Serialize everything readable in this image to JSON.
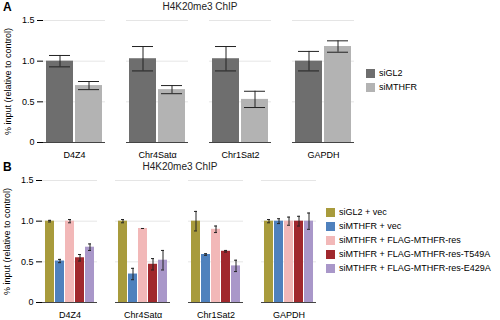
{
  "chart_data": [
    {
      "type": "bar",
      "title": "H4K20me3 ChIP",
      "annotations": [
        "A"
      ],
      "ylabel": "% input (relative to control)",
      "categories": [
        "D4Z4",
        "Chr4Satα",
        "Chr1Sat2",
        "GAPDH"
      ],
      "series": [
        {
          "name": "siGL2",
          "color": "#6e6e6e",
          "values": [
            1.0,
            1.03,
            1.03,
            1.0
          ],
          "errors": [
            0.07,
            0.15,
            0.15,
            0.12
          ]
        },
        {
          "name": "siMTHFR",
          "color": "#b3b3b3",
          "values": [
            0.7,
            0.65,
            0.53,
            1.18
          ],
          "errors": [
            0.05,
            0.05,
            0.1,
            0.07
          ]
        }
      ],
      "ylim": [
        0,
        1.5
      ],
      "yticks": [
        0,
        0.5,
        {
          "value": 1,
          "label": "1.0"
        },
        1.5
      ],
      "grid": true,
      "legend": "right"
    },
    {
      "type": "bar",
      "title": "H4K20me3 ChIP",
      "annotations": [
        "B"
      ],
      "ylabel": "% input (relative to control)",
      "categories": [
        "D4Z4",
        "Chr4Satα",
        "Chr1Sat2",
        "GAPDH"
      ],
      "series": [
        {
          "name": "siGL2 + vec",
          "color": "#a89b3c",
          "values": [
            1.0,
            1.0,
            1.0,
            1.0
          ],
          "errors": [
            0.01,
            0.02,
            0.12,
            0.02
          ]
        },
        {
          "name": "siMTHFR + vec",
          "color": "#4f81bd",
          "values": [
            0.51,
            0.35,
            0.59,
            1.0
          ],
          "errors": [
            0.02,
            0.07,
            0.01,
            0.03
          ]
        },
        {
          "name": "siMTHFR + FLAG-MTHFR-res",
          "color": "#f2b8b8",
          "values": [
            1.0,
            0.91,
            0.9,
            1.0
          ],
          "errors": [
            0.02,
            0.0,
            0.04,
            0.05
          ]
        },
        {
          "name": "siMTHFR + FLAG-MTHFR-res-T549A",
          "color": "#a0282d",
          "values": [
            0.55,
            0.47,
            0.63,
            1.0
          ],
          "errors": [
            0.04,
            0.07,
            0.01,
            0.06
          ]
        },
        {
          "name": "siMTHFR + FLAG-MTHFR-res-E429A",
          "color": "#a997c9",
          "values": [
            0.68,
            0.52,
            0.45,
            1.0
          ],
          "errors": [
            0.04,
            0.12,
            0.07,
            0.1
          ]
        }
      ],
      "ylim": [
        0,
        1.5
      ],
      "yticks": [
        0,
        0.5,
        {
          "value": 1,
          "label": "1.0"
        },
        1.5
      ],
      "grid": true,
      "legend": "right"
    }
  ]
}
